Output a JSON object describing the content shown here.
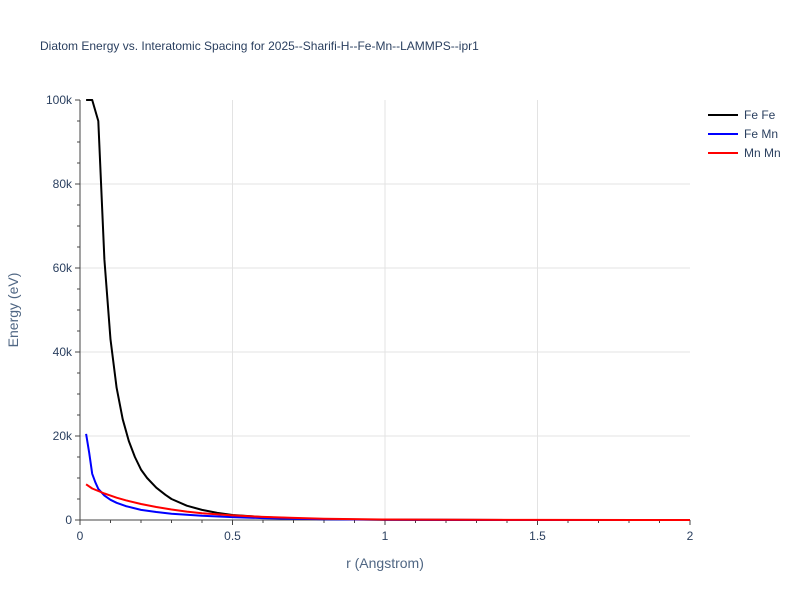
{
  "chart_data": {
    "type": "line",
    "title": "Diatom Energy vs. Interatomic Spacing for 2025--Sharifi-H--Fe-Mn--LAMMPS--ipr1",
    "xlabel": "r (Angstrom)",
    "ylabel": "Energy (eV)",
    "xlim": [
      0,
      2
    ],
    "ylim": [
      0,
      100000
    ],
    "grid": true,
    "legend_position": "right",
    "x_ticks": [
      {
        "value": 0,
        "label": "0"
      },
      {
        "value": 0.5,
        "label": "0.5"
      },
      {
        "value": 1,
        "label": "1"
      },
      {
        "value": 1.5,
        "label": "1.5"
      },
      {
        "value": 2,
        "label": "2"
      }
    ],
    "y_ticks": [
      {
        "value": 0,
        "label": "0"
      },
      {
        "value": 20000,
        "label": "20k"
      },
      {
        "value": 40000,
        "label": "40k"
      },
      {
        "value": 60000,
        "label": "60k"
      },
      {
        "value": 80000,
        "label": "80k"
      },
      {
        "value": 100000,
        "label": "100k"
      }
    ],
    "series": [
      {
        "name": "Fe Fe",
        "color": "#000000",
        "x": [
          0.02,
          0.04,
          0.06,
          0.08,
          0.1,
          0.12,
          0.14,
          0.16,
          0.18,
          0.2,
          0.22,
          0.25,
          0.28,
          0.3,
          0.35,
          0.4,
          0.45,
          0.5,
          0.6,
          0.7,
          0.8,
          1.0,
          1.5,
          2.0
        ],
        "y": [
          100000,
          100000,
          95000,
          62000,
          43000,
          31500,
          24000,
          18800,
          15000,
          12000,
          10000,
          7700,
          6000,
          5000,
          3400,
          2400,
          1700,
          1200,
          700,
          400,
          200,
          50,
          10,
          0
        ]
      },
      {
        "name": "Fe Mn",
        "color": "#0000ff",
        "x": [
          0.02,
          0.03,
          0.04,
          0.05,
          0.06,
          0.08,
          0.1,
          0.12,
          0.15,
          0.2,
          0.25,
          0.3,
          0.4,
          0.5,
          0.6,
          0.7,
          0.8,
          1.0,
          1.5,
          2.0
        ],
        "y": [
          20500,
          16000,
          11000,
          9000,
          7400,
          5800,
          4800,
          4100,
          3300,
          2400,
          1900,
          1500,
          1000,
          700,
          450,
          300,
          180,
          60,
          10,
          0
        ]
      },
      {
        "name": "Mn Mn",
        "color": "#ff0000",
        "x": [
          0.02,
          0.04,
          0.06,
          0.08,
          0.1,
          0.12,
          0.15,
          0.2,
          0.25,
          0.3,
          0.35,
          0.4,
          0.5,
          0.6,
          0.7,
          0.8,
          1.0,
          1.5,
          2.0
        ],
        "y": [
          8500,
          7500,
          6900,
          6300,
          5800,
          5300,
          4700,
          3800,
          3100,
          2500,
          2000,
          1600,
          1100,
          750,
          500,
          320,
          120,
          20,
          0
        ]
      }
    ]
  }
}
